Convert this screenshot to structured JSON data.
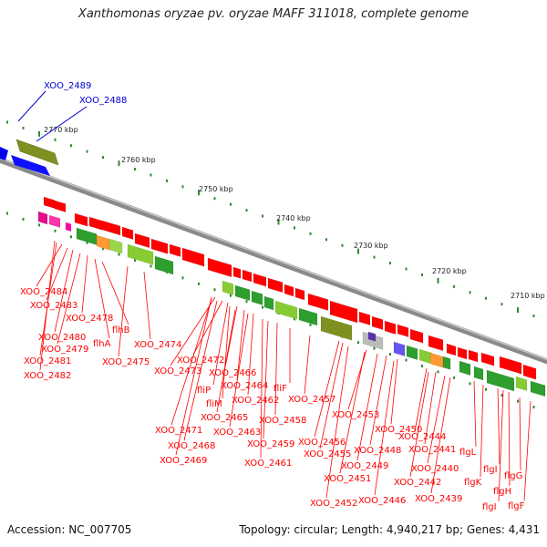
{
  "title": "Xanthomonas oryzae pv. oryzae MAFF 311018, complete genome",
  "footer": {
    "accession": "Accession: NC_007705",
    "stats": "Topology: circular; Length: 4,940,217 bp; Genes: 4,431"
  },
  "colors": {
    "backbone": "#9a9a9a",
    "tick": "#2f8a2f",
    "red_gene": "#ff0000",
    "blue_gene": "#0000ff",
    "green_gene": "#2e9e2e",
    "olive_gene": "#7f8f1f",
    "label_red": "#ff0000",
    "label_blue": "#0000cc"
  },
  "scale_labels": [
    "2770 kbp",
    "2760 kbp",
    "2750 kbp",
    "2740 kbp",
    "2730 kbp",
    "2720 kbp",
    "2710 kbp"
  ],
  "top_labels": [
    "XOO_2489",
    "XOO_2488"
  ],
  "gene_labels": [
    "XOO_2484",
    "XOO_2483",
    "XOO_2478",
    "flhB",
    "XOO_2480",
    "XOO_2479",
    "flhA",
    "XOO_2481",
    "XOO_2482",
    "XOO_2474",
    "XOO_2475",
    "XOO_2472",
    "XOO_2473",
    "XOO_2466",
    "fliP",
    "XOO_2464",
    "fliF",
    "fliM",
    "XOO_2462",
    "XOO_2457",
    "XOO_2465",
    "XOO_2458",
    "XOO_2471",
    "XOO_2463",
    "XOO_2468",
    "XOO_2459",
    "XOO_2469",
    "XOO_2461",
    "XOO_2453",
    "XOO_2456",
    "XOO_2450",
    "XOO_2455",
    "XOO_2448",
    "XOO_2449",
    "XOO_2451",
    "XOO_2444",
    "XOO_2441",
    "flgL",
    "XOO_2440",
    "flgI",
    "flgK",
    "flgG",
    "XOO_2442",
    "flgH",
    "XOO_2452",
    "XOO_2446",
    "XOO_2439",
    "flgI",
    "flgF"
  ]
}
